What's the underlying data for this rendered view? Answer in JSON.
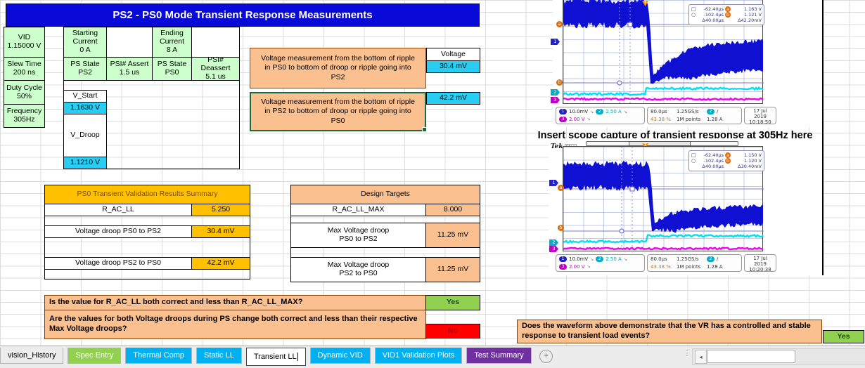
{
  "title": "PS2 - PS0 Mode Transient Response Measurements",
  "left_params": [
    {
      "label": "VID",
      "value": "1.15000 V"
    },
    {
      "label": "Slew Time",
      "value": "200 ns"
    },
    {
      "label": "Duty Cycle",
      "value": "50%"
    },
    {
      "label": "Frequency",
      "value": "305Hz"
    }
  ],
  "current_table": {
    "starting_label": "Starting\nCurrent",
    "starting_value": "0 A",
    "ending_label": "Ending\nCurrent",
    "ending_value": "8 A",
    "row2": [
      {
        "label": "PS State",
        "value": "PS2"
      },
      {
        "label": "PSI# Assert",
        "value": "1.5 us"
      },
      {
        "label": "PS State",
        "value": "PS0"
      },
      {
        "label": "PSI# Deassert",
        "value": "5.1 us"
      }
    ],
    "v_start_label": "V_Start",
    "v_start_value": "1.1630 V",
    "v_droop_label": "V_Droop",
    "v_droop_value": "1.1210 V"
  },
  "measurements": [
    {
      "text": "Voltage measurement from the bottom of ripple in PS0 to bottom of droop or ripple going into PS2",
      "header": "Voltage",
      "value": "30.4 mV"
    },
    {
      "text": "Voltage measurement from the bottom of ripple in PS2 to bottom of droop or ripple going into PS0",
      "value": "42.2 mV"
    }
  ],
  "summary_table": {
    "title": "PS0 Transient Validation Results Summary",
    "rows": [
      {
        "label": "R_AC_LL",
        "value": "5.250"
      },
      {
        "label": "Voltage droop PS0 to PS2",
        "value": "30.4 mV"
      },
      {
        "label": "Voltage droop PS2 to PS0",
        "value": "42.2 mV"
      }
    ]
  },
  "targets_table": {
    "title": "Design Targets",
    "rows": [
      {
        "label": "R_AC_LL_MAX",
        "value": "8.000"
      },
      {
        "label": "Max Voltage droop\nPS0 to PS2",
        "value": "11.25 mV"
      },
      {
        "label": "Max Voltage droop\nPS2 to PS0",
        "value": "11.25 mV"
      }
    ]
  },
  "questions": [
    {
      "text": "Is the value for R_AC_LL both correct and  less than R_AC_LL_MAX?",
      "answer": "Yes"
    },
    {
      "text": "Are the values for both Voltage droops during PS change both correct and  less than their respective Max Voltage droops?",
      "answer": "No"
    },
    {
      "text": "Does the waveform above demonstrate that the VR has a controlled and stable response to transient load events?",
      "answer": "Yes"
    }
  ],
  "scope_heading": "Insert scope capture of transient response at 305Hz here",
  "icons": {
    "square": "□",
    "circle": "○",
    "slope": "↘",
    "trig_slope": "/",
    "plus": "+",
    "dots": "⋮",
    "scroll_left": "◂",
    "trigger": "T"
  },
  "scopes": [
    {
      "cursor": {
        "sq_t": "-62.40µs",
        "sq_m": "a",
        "sq_v": "1.163 V",
        "ci_t": "-102.4µs",
        "ci_m": "b",
        "ci_v": "1.121 V",
        "d_t": "Δ40.00µs",
        "d_v": "Δ42.20mV"
      },
      "ch1_n": "1",
      "ch1_v": "10.0mV",
      "ch2_n": "2",
      "ch2_v": "2.50 A",
      "ch3_n": "3",
      "ch3_v": "2.00 V",
      "timebase": "80.0µs",
      "hpos": "43.38 %",
      "rate": "1.25GS/s",
      "points": "1M points",
      "trig_ch": "2",
      "trig_v": "1.28 A",
      "date": "17 Jul 2019",
      "time": "10:18:50"
    },
    {
      "header_bold": "Tek",
      "header_rest": "Stop",
      "cursor": {
        "sq_t": "-62.40µs",
        "sq_m": "a",
        "sq_v": "1.150 V",
        "ci_t": "-102.4µs",
        "ci_m": "b",
        "ci_v": "1.120 V",
        "d_t": "Δ40.00µs",
        "d_v": "Δ30.40mV"
      },
      "ch1_n": "1",
      "ch1_v": "10.0mV",
      "ch2_n": "2",
      "ch2_v": "2.50 A",
      "ch3_n": "3",
      "ch3_v": "2.00 V",
      "timebase": "80.0µs",
      "hpos": "43.38 %",
      "rate": "1.25GS/s",
      "points": "1M points",
      "trig_ch": "2",
      "trig_v": "1.28 A",
      "date": "17 Jul 2019",
      "time": "10:20:38"
    }
  ],
  "tabs": [
    {
      "label": "vision_History",
      "color": "#ececec",
      "text": "#000000",
      "active": false
    },
    {
      "label": "Spec Entry",
      "color": "#92D050",
      "text": "#ffffff",
      "active": false
    },
    {
      "label": "Thermal Comp",
      "color": "#00B0F0",
      "text": "#ffffff",
      "active": false
    },
    {
      "label": "Static LL",
      "color": "#00B0F0",
      "text": "#ffffff",
      "active": false
    },
    {
      "label": "Transient LL",
      "color": "#ffffff",
      "text": "#000000",
      "active": true
    },
    {
      "label": "Dynamic VID",
      "color": "#00B0F0",
      "text": "#ffffff",
      "active": false
    },
    {
      "label": "VID1 Validation Plots",
      "color": "#00B0F0",
      "text": "#ffffff",
      "active": false
    },
    {
      "label": "Test Summary",
      "color": "#7030A0",
      "text": "#ffffff",
      "active": false
    }
  ]
}
